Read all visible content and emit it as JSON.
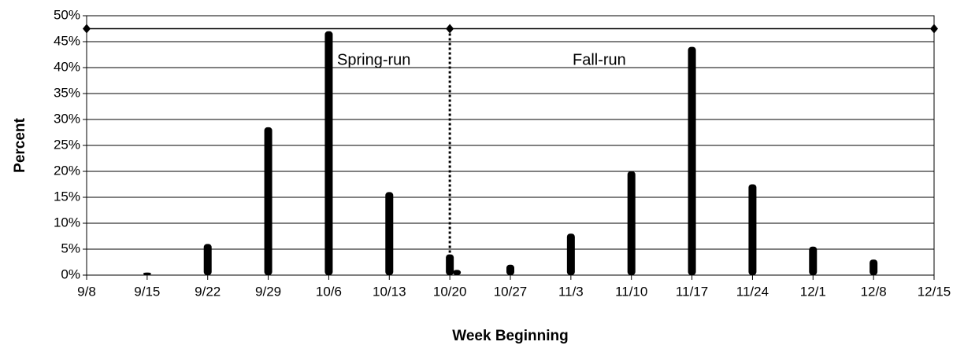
{
  "chart_data": {
    "type": "bar",
    "y_axis_label": "Percent",
    "x_axis_label": "Week Beginning",
    "categories": [
      "9/8",
      "9/15",
      "9/22",
      "9/29",
      "10/6",
      "10/13",
      "10/20",
      "10/27",
      "11/3",
      "11/10",
      "11/17",
      "11/24",
      "12/1",
      "12/8",
      "12/15"
    ],
    "series": [
      {
        "name": "Spring-run",
        "color": "#000000",
        "values": [
          null,
          0.5,
          6,
          28.5,
          47,
          16,
          4,
          null,
          null,
          null,
          null,
          null,
          null,
          null,
          null
        ]
      },
      {
        "name": "Fall-run",
        "color": "#000000",
        "values": [
          null,
          null,
          null,
          null,
          null,
          null,
          1,
          2,
          8,
          20,
          44,
          17.5,
          5.5,
          3,
          null
        ]
      }
    ],
    "boundary": {
      "color": "#000000",
      "values": [
        47.5,
        null,
        null,
        null,
        null,
        null,
        47.5,
        null,
        null,
        null,
        null,
        null,
        null,
        null,
        47.5
      ]
    },
    "ylim": [
      0,
      50
    ],
    "yticks": [
      {
        "value": 0,
        "label": "0%"
      },
      {
        "value": 5,
        "label": "5%"
      },
      {
        "value": 10,
        "label": "10%"
      },
      {
        "value": 15,
        "label": "15%"
      },
      {
        "value": 20,
        "label": "20%"
      },
      {
        "value": 25,
        "label": "25%"
      },
      {
        "value": 30,
        "label": "30%"
      },
      {
        "value": 35,
        "label": "35%"
      },
      {
        "value": 40,
        "label": "40%"
      },
      {
        "value": 45,
        "label": "45%"
      },
      {
        "value": 50,
        "label": "50%"
      }
    ],
    "grid": true
  }
}
